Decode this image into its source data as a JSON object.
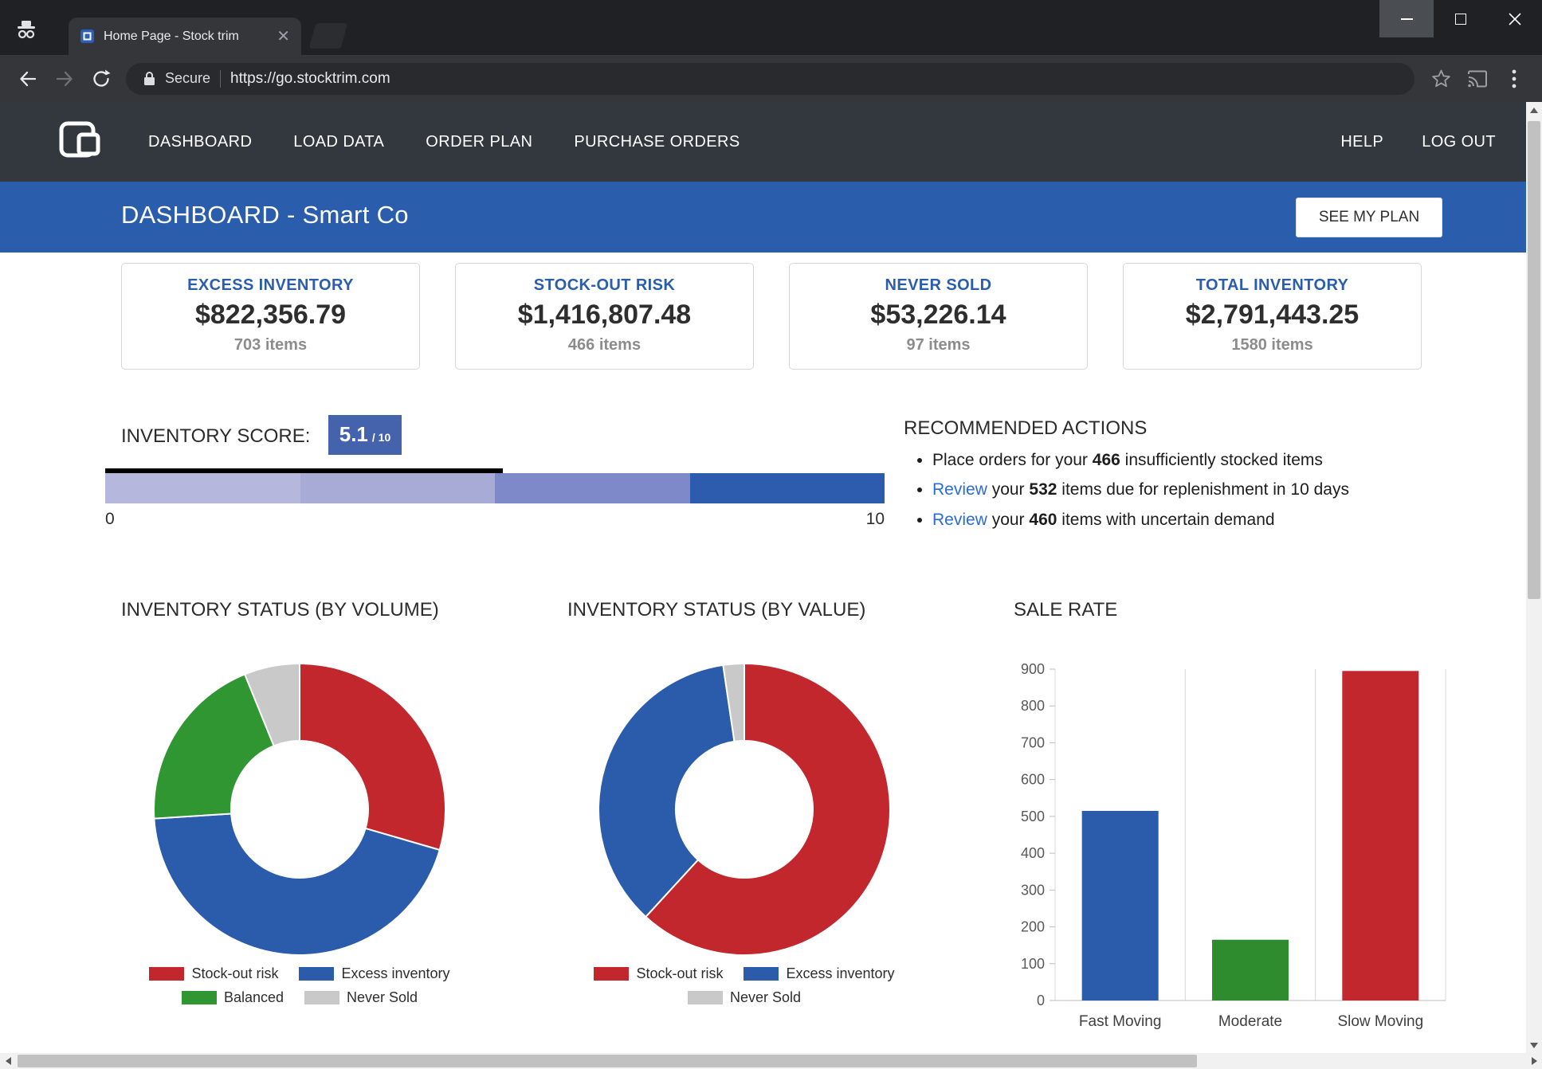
{
  "browser": {
    "tab_title": "Home Page - Stock trim",
    "secure_label": "Secure",
    "url": "https://go.stocktrim.com"
  },
  "app_nav": {
    "items": [
      {
        "label": "DASHBOARD"
      },
      {
        "label": "LOAD DATA"
      },
      {
        "label": "ORDER PLAN"
      },
      {
        "label": "PURCHASE ORDERS"
      }
    ],
    "right_items": [
      {
        "label": "HELP"
      },
      {
        "label": "LOG OUT"
      }
    ]
  },
  "banner": {
    "title": "DASHBOARD - Smart Co",
    "plan_button": "SEE MY PLAN"
  },
  "summary_cards": [
    {
      "title": "EXCESS INVENTORY",
      "value": "$822,356.79",
      "items": "703 items"
    },
    {
      "title": "STOCK-OUT RISK",
      "value": "$1,416,807.48",
      "items": "466 items"
    },
    {
      "title": "NEVER SOLD",
      "value": "$53,226.14",
      "items": "97 items"
    },
    {
      "title": "TOTAL INVENTORY",
      "value": "$2,791,443.25",
      "items": "1580 items"
    }
  ],
  "inventory_score": {
    "label": "INVENTORY SCORE:",
    "score": "5.1",
    "score_suffix": "/ 10",
    "fraction": 0.51,
    "axis_min": "0",
    "axis_max": "10",
    "segment_colors": [
      "#b5b8dc",
      "#a7abd6",
      "#7e89c9",
      "#2d5cae"
    ],
    "marker_color": "#000000"
  },
  "recommended_actions": {
    "title": "RECOMMENDED ACTIONS",
    "items": [
      {
        "parts": [
          {
            "text": "Place orders for your ",
            "style": "plain"
          },
          {
            "text": "466",
            "style": "bold"
          },
          {
            "text": " insufficiently stocked items",
            "style": "plain"
          }
        ]
      },
      {
        "parts": [
          {
            "text": "Review",
            "style": "link"
          },
          {
            "text": " your ",
            "style": "plain"
          },
          {
            "text": "532",
            "style": "bold"
          },
          {
            "text": " items due for replenishment in 10 days",
            "style": "plain"
          }
        ]
      },
      {
        "parts": [
          {
            "text": "Review",
            "style": "link"
          },
          {
            "text": " your ",
            "style": "plain"
          },
          {
            "text": "460",
            "style": "bold"
          },
          {
            "text": " items with uncertain demand",
            "style": "plain"
          }
        ]
      }
    ]
  },
  "chart_data": [
    {
      "type": "pie",
      "donut": true,
      "title": "INVENTORY STATUS (BY VOLUME)",
      "labels": [
        "Stock-out risk",
        "Excess inventory",
        "Balanced",
        "Never Sold"
      ],
      "values": [
        466,
        703,
        314,
        97
      ],
      "colors": [
        "#c1272d",
        "#2b5cab",
        "#2f9632",
        "#c9c9c9"
      ],
      "legend_rows": [
        [
          0,
          1
        ],
        [
          2,
          3
        ]
      ]
    },
    {
      "type": "pie",
      "donut": true,
      "title": "INVENTORY STATUS (BY VALUE)",
      "labels": [
        "Stock-out risk",
        "Excess inventory",
        "Never Sold"
      ],
      "values": [
        1416807.48,
        822356.79,
        53226.14
      ],
      "colors": [
        "#c1272d",
        "#2b5cab",
        "#c9c9c9"
      ],
      "legend_rows": [
        [
          0,
          1
        ],
        [
          2
        ]
      ]
    },
    {
      "type": "bar",
      "title": "SALE RATE",
      "categories": [
        "Fast Moving",
        "Moderate",
        "Slow Moving"
      ],
      "values": [
        515,
        165,
        895
      ],
      "colors": [
        "#2b5cab",
        "#2e8b2e",
        "#c1272d"
      ],
      "ylim": [
        0,
        900
      ],
      "ytick_step": 100,
      "grid": "vertical",
      "legend_position": "none"
    }
  ]
}
